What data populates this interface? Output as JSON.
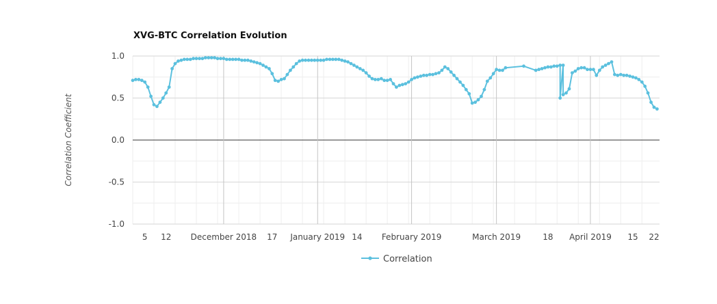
{
  "chart_data": {
    "type": "line",
    "title": "XVG-BTC Correlation Evolution",
    "xlabel": "",
    "ylabel": "Correlation Coefficient",
    "ylim": [
      -1.0,
      1.0
    ],
    "y_ticks": [
      "1.0",
      "0.5",
      "0.0",
      "-0.5",
      "-1.0"
    ],
    "x_range": [
      "2018-11-01",
      "2019-04-22"
    ],
    "x_ticks": [
      {
        "date": "2018-11-05",
        "label": "5"
      },
      {
        "date": "2018-11-12",
        "label": "12"
      },
      {
        "date": "2018-12-01",
        "label": "December 2018"
      },
      {
        "date": "2018-12-17",
        "label": "17"
      },
      {
        "date": "2019-01-01",
        "label": "January 2019"
      },
      {
        "date": "2019-01-14",
        "label": "14"
      },
      {
        "date": "2019-02-01",
        "label": "February 2019"
      },
      {
        "date": "2019-03-01",
        "label": "March 2019"
      },
      {
        "date": "2019-03-18",
        "label": "18"
      },
      {
        "date": "2019-04-01",
        "label": "April 2019"
      },
      {
        "date": "2019-04-15",
        "label": "15"
      },
      {
        "date": "2019-04-22",
        "label": "22"
      }
    ],
    "grid": true,
    "legend_position": "bottom",
    "series": [
      {
        "name": "Correlation",
        "color": "#5bc0de",
        "points": [
          [
            "2018-11-01",
            0.71
          ],
          [
            "2018-11-02",
            0.72
          ],
          [
            "2018-11-03",
            0.72
          ],
          [
            "2018-11-04",
            0.71
          ],
          [
            "2018-11-05",
            0.69
          ],
          [
            "2018-11-06",
            0.63
          ],
          [
            "2018-11-07",
            0.52
          ],
          [
            "2018-11-08",
            0.42
          ],
          [
            "2018-11-09",
            0.4
          ],
          [
            "2018-11-10",
            0.45
          ],
          [
            "2018-11-11",
            0.5
          ],
          [
            "2018-11-12",
            0.56
          ],
          [
            "2018-11-13",
            0.63
          ],
          [
            "2018-11-14",
            0.85
          ],
          [
            "2018-11-15",
            0.91
          ],
          [
            "2018-11-16",
            0.94
          ],
          [
            "2018-11-17",
            0.95
          ],
          [
            "2018-11-18",
            0.96
          ],
          [
            "2018-11-19",
            0.96
          ],
          [
            "2018-11-20",
            0.96
          ],
          [
            "2018-11-21",
            0.97
          ],
          [
            "2018-11-22",
            0.97
          ],
          [
            "2018-11-23",
            0.97
          ],
          [
            "2018-11-24",
            0.97
          ],
          [
            "2018-11-25",
            0.98
          ],
          [
            "2018-11-26",
            0.98
          ],
          [
            "2018-11-27",
            0.98
          ],
          [
            "2018-11-28",
            0.98
          ],
          [
            "2018-11-29",
            0.97
          ],
          [
            "2018-11-30",
            0.97
          ],
          [
            "2018-12-01",
            0.97
          ],
          [
            "2018-12-02",
            0.96
          ],
          [
            "2018-12-03",
            0.96
          ],
          [
            "2018-12-04",
            0.96
          ],
          [
            "2018-12-05",
            0.96
          ],
          [
            "2018-12-06",
            0.96
          ],
          [
            "2018-12-07",
            0.95
          ],
          [
            "2018-12-08",
            0.95
          ],
          [
            "2018-12-09",
            0.95
          ],
          [
            "2018-12-10",
            0.94
          ],
          [
            "2018-12-11",
            0.93
          ],
          [
            "2018-12-12",
            0.92
          ],
          [
            "2018-12-13",
            0.91
          ],
          [
            "2018-12-14",
            0.89
          ],
          [
            "2018-12-15",
            0.87
          ],
          [
            "2018-12-16",
            0.85
          ],
          [
            "2018-12-17",
            0.79
          ],
          [
            "2018-12-18",
            0.71
          ],
          [
            "2018-12-19",
            0.7
          ],
          [
            "2018-12-20",
            0.72
          ],
          [
            "2018-12-21",
            0.73
          ],
          [
            "2018-12-22",
            0.78
          ],
          [
            "2018-12-23",
            0.83
          ],
          [
            "2018-12-24",
            0.87
          ],
          [
            "2018-12-25",
            0.91
          ],
          [
            "2018-12-26",
            0.94
          ],
          [
            "2018-12-27",
            0.95
          ],
          [
            "2018-12-28",
            0.95
          ],
          [
            "2018-12-29",
            0.95
          ],
          [
            "2018-12-30",
            0.95
          ],
          [
            "2018-12-31",
            0.95
          ],
          [
            "2019-01-01",
            0.95
          ],
          [
            "2019-01-02",
            0.95
          ],
          [
            "2019-01-03",
            0.95
          ],
          [
            "2019-01-04",
            0.96
          ],
          [
            "2019-01-05",
            0.96
          ],
          [
            "2019-01-06",
            0.96
          ],
          [
            "2019-01-07",
            0.96
          ],
          [
            "2019-01-08",
            0.96
          ],
          [
            "2019-01-09",
            0.95
          ],
          [
            "2019-01-10",
            0.94
          ],
          [
            "2019-01-11",
            0.93
          ],
          [
            "2019-01-12",
            0.91
          ],
          [
            "2019-01-13",
            0.89
          ],
          [
            "2019-01-14",
            0.87
          ],
          [
            "2019-01-15",
            0.85
          ],
          [
            "2019-01-16",
            0.83
          ],
          [
            "2019-01-17",
            0.8
          ],
          [
            "2019-01-18",
            0.76
          ],
          [
            "2019-01-19",
            0.73
          ],
          [
            "2019-01-20",
            0.72
          ],
          [
            "2019-01-21",
            0.72
          ],
          [
            "2019-01-22",
            0.73
          ],
          [
            "2019-01-23",
            0.71
          ],
          [
            "2019-01-24",
            0.71
          ],
          [
            "2019-01-25",
            0.72
          ],
          [
            "2019-01-26",
            0.67
          ],
          [
            "2019-01-27",
            0.63
          ],
          [
            "2019-01-28",
            0.65
          ],
          [
            "2019-01-29",
            0.66
          ],
          [
            "2019-01-30",
            0.67
          ],
          [
            "2019-01-31",
            0.69
          ],
          [
            "2019-02-01",
            0.72
          ],
          [
            "2019-02-02",
            0.74
          ],
          [
            "2019-02-03",
            0.75
          ],
          [
            "2019-02-04",
            0.76
          ],
          [
            "2019-02-05",
            0.77
          ],
          [
            "2019-02-06",
            0.77
          ],
          [
            "2019-02-07",
            0.78
          ],
          [
            "2019-02-08",
            0.78
          ],
          [
            "2019-02-09",
            0.79
          ],
          [
            "2019-02-10",
            0.8
          ],
          [
            "2019-02-11",
            0.83
          ],
          [
            "2019-02-12",
            0.87
          ],
          [
            "2019-02-13",
            0.85
          ],
          [
            "2019-02-14",
            0.81
          ],
          [
            "2019-02-15",
            0.77
          ],
          [
            "2019-02-16",
            0.73
          ],
          [
            "2019-02-17",
            0.69
          ],
          [
            "2019-02-18",
            0.65
          ],
          [
            "2019-02-19",
            0.6
          ],
          [
            "2019-02-20",
            0.55
          ],
          [
            "2019-02-21",
            0.44
          ],
          [
            "2019-02-22",
            0.45
          ],
          [
            "2019-02-23",
            0.48
          ],
          [
            "2019-02-24",
            0.52
          ],
          [
            "2019-02-25",
            0.6
          ],
          [
            "2019-02-26",
            0.7
          ],
          [
            "2019-02-27",
            0.74
          ],
          [
            "2019-02-28",
            0.79
          ],
          [
            "2019-03-01",
            0.84
          ],
          [
            "2019-03-02",
            0.83
          ],
          [
            "2019-03-03",
            0.83
          ],
          [
            "2019-03-04",
            0.86
          ],
          [
            "2019-03-10",
            0.88
          ],
          [
            "2019-03-14",
            0.83
          ],
          [
            "2019-03-15",
            0.84
          ],
          [
            "2019-03-16",
            0.85
          ],
          [
            "2019-03-17",
            0.86
          ],
          [
            "2019-03-18",
            0.87
          ],
          [
            "2019-03-19",
            0.87
          ],
          [
            "2019-03-20",
            0.88
          ],
          [
            "2019-03-21",
            0.88
          ],
          [
            "2019-03-22",
            0.89
          ],
          [
            "2019-03-22",
            0.5
          ],
          [
            "2019-03-23",
            0.89
          ],
          [
            "2019-03-23",
            0.54
          ],
          [
            "2019-03-24",
            0.56
          ],
          [
            "2019-03-25",
            0.61
          ],
          [
            "2019-03-26",
            0.8
          ],
          [
            "2019-03-27",
            0.82
          ],
          [
            "2019-03-28",
            0.85
          ],
          [
            "2019-03-29",
            0.86
          ],
          [
            "2019-03-30",
            0.86
          ],
          [
            "2019-03-31",
            0.84
          ],
          [
            "2019-04-01",
            0.84
          ],
          [
            "2019-04-02",
            0.84
          ],
          [
            "2019-04-03",
            0.77
          ],
          [
            "2019-04-04",
            0.83
          ],
          [
            "2019-04-05",
            0.87
          ],
          [
            "2019-04-06",
            0.89
          ],
          [
            "2019-04-07",
            0.91
          ],
          [
            "2019-04-08",
            0.93
          ],
          [
            "2019-04-09",
            0.78
          ],
          [
            "2019-04-10",
            0.77
          ],
          [
            "2019-04-11",
            0.78
          ],
          [
            "2019-04-12",
            0.77
          ],
          [
            "2019-04-13",
            0.77
          ],
          [
            "2019-04-14",
            0.76
          ],
          [
            "2019-04-15",
            0.75
          ],
          [
            "2019-04-16",
            0.74
          ],
          [
            "2019-04-17",
            0.72
          ],
          [
            "2019-04-18",
            0.69
          ],
          [
            "2019-04-19",
            0.64
          ],
          [
            "2019-04-20",
            0.56
          ],
          [
            "2019-04-21",
            0.45
          ],
          [
            "2019-04-22",
            0.39
          ],
          [
            "2019-04-23",
            0.37
          ]
        ]
      }
    ]
  },
  "legend": {
    "label": "Correlation"
  }
}
